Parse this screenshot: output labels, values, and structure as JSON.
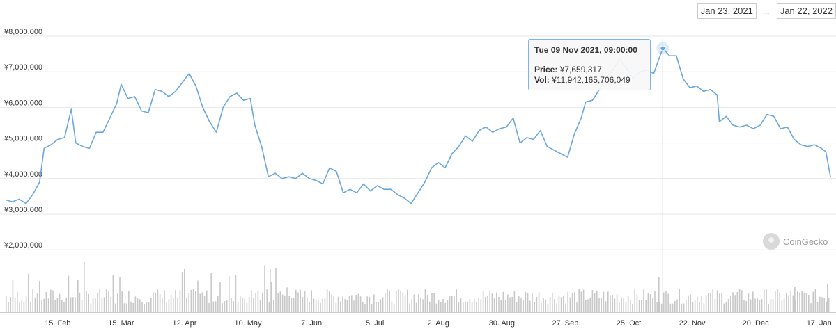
{
  "date_range": {
    "from": "Jan 23, 2021",
    "to": "Jan 22, 2022",
    "arrow": "→"
  },
  "tooltip": {
    "title": "Tue 09 Nov 2021, 09:00:00",
    "price_label": "Price:",
    "price_value": "¥7,659,317",
    "vol_label": "Vol:",
    "vol_value": "¥11,942,165,706,049"
  },
  "watermark": "CoinGecko",
  "colors": {
    "line": "#6aa7de",
    "volume": "#c8c8c8",
    "grid": "#e6e6e6",
    "tooltip_border": "#7cb5ec"
  },
  "chart_data": {
    "type": "line",
    "title": "",
    "xlabel": "",
    "ylabel": "",
    "ylim": [
      1200000,
      8700000
    ],
    "yticks": [
      2000000,
      3000000,
      4000000,
      5000000,
      6000000,
      7000000,
      8000000
    ],
    "ytick_labels": [
      "¥2,000,000",
      "¥3,000,000",
      "¥4,000,000",
      "¥5,000,000",
      "¥6,000,000",
      "¥7,000,000",
      "¥8,000,000"
    ],
    "x_start": "2021-01-23",
    "x_end": "2022-01-22",
    "xtick_labels": [
      "15. Feb",
      "15. Mar",
      "12. Apr",
      "10. May",
      "7. Jun",
      "5. Jul",
      "2. Aug",
      "30. Aug",
      "27. Sep",
      "25. Oct",
      "22. Nov",
      "20. Dec",
      "17. Jan"
    ],
    "xtick_dates": [
      "2021-02-15",
      "2021-03-15",
      "2021-04-12",
      "2021-05-10",
      "2021-06-07",
      "2021-07-05",
      "2021-08-02",
      "2021-08-30",
      "2021-09-27",
      "2021-10-25",
      "2021-11-22",
      "2021-12-20",
      "2022-01-17"
    ],
    "series": [
      {
        "type": "line",
        "points": [
          [
            "2021-01-23",
            3400000
          ],
          [
            "2021-01-26",
            3350000
          ],
          [
            "2021-01-29",
            3420000
          ],
          [
            "2021-02-01",
            3300000
          ],
          [
            "2021-02-04",
            3550000
          ],
          [
            "2021-02-07",
            3900000
          ],
          [
            "2021-02-09",
            4850000
          ],
          [
            "2021-02-12",
            4950000
          ],
          [
            "2021-02-15",
            5100000
          ],
          [
            "2021-02-18",
            5150000
          ],
          [
            "2021-02-21",
            5950000
          ],
          [
            "2021-02-23",
            5000000
          ],
          [
            "2021-02-26",
            4900000
          ],
          [
            "2021-03-01",
            4850000
          ],
          [
            "2021-03-04",
            5300000
          ],
          [
            "2021-03-07",
            5300000
          ],
          [
            "2021-03-10",
            5700000
          ],
          [
            "2021-03-13",
            6100000
          ],
          [
            "2021-03-15",
            6650000
          ],
          [
            "2021-03-18",
            6250000
          ],
          [
            "2021-03-21",
            6300000
          ],
          [
            "2021-03-24",
            5900000
          ],
          [
            "2021-03-27",
            5850000
          ],
          [
            "2021-03-30",
            6500000
          ],
          [
            "2021-04-02",
            6450000
          ],
          [
            "2021-04-05",
            6300000
          ],
          [
            "2021-04-08",
            6450000
          ],
          [
            "2021-04-11",
            6700000
          ],
          [
            "2021-04-14",
            6950000
          ],
          [
            "2021-04-17",
            6600000
          ],
          [
            "2021-04-20",
            6000000
          ],
          [
            "2021-04-23",
            5600000
          ],
          [
            "2021-04-26",
            5300000
          ],
          [
            "2021-04-29",
            6000000
          ],
          [
            "2021-05-02",
            6300000
          ],
          [
            "2021-05-05",
            6400000
          ],
          [
            "2021-05-08",
            6200000
          ],
          [
            "2021-05-11",
            6250000
          ],
          [
            "2021-05-13",
            5500000
          ],
          [
            "2021-05-16",
            4900000
          ],
          [
            "2021-05-19",
            4050000
          ],
          [
            "2021-05-22",
            4150000
          ],
          [
            "2021-05-25",
            4000000
          ],
          [
            "2021-05-28",
            4050000
          ],
          [
            "2021-05-31",
            4000000
          ],
          [
            "2021-06-03",
            4150000
          ],
          [
            "2021-06-06",
            4000000
          ],
          [
            "2021-06-09",
            3950000
          ],
          [
            "2021-06-12",
            3850000
          ],
          [
            "2021-06-15",
            4300000
          ],
          [
            "2021-06-18",
            4200000
          ],
          [
            "2021-06-21",
            3600000
          ],
          [
            "2021-06-24",
            3700000
          ],
          [
            "2021-06-27",
            3600000
          ],
          [
            "2021-06-30",
            3850000
          ],
          [
            "2021-07-03",
            3650000
          ],
          [
            "2021-07-06",
            3800000
          ],
          [
            "2021-07-09",
            3700000
          ],
          [
            "2021-07-12",
            3700000
          ],
          [
            "2021-07-15",
            3550000
          ],
          [
            "2021-07-18",
            3450000
          ],
          [
            "2021-07-21",
            3300000
          ],
          [
            "2021-07-24",
            3600000
          ],
          [
            "2021-07-27",
            3900000
          ],
          [
            "2021-07-30",
            4300000
          ],
          [
            "2021-08-02",
            4450000
          ],
          [
            "2021-08-05",
            4300000
          ],
          [
            "2021-08-08",
            4700000
          ],
          [
            "2021-08-11",
            4900000
          ],
          [
            "2021-08-14",
            5200000
          ],
          [
            "2021-08-17",
            5050000
          ],
          [
            "2021-08-20",
            5350000
          ],
          [
            "2021-08-23",
            5450000
          ],
          [
            "2021-08-26",
            5300000
          ],
          [
            "2021-08-29",
            5400000
          ],
          [
            "2021-09-01",
            5450000
          ],
          [
            "2021-09-04",
            5700000
          ],
          [
            "2021-09-07",
            5000000
          ],
          [
            "2021-09-10",
            5150000
          ],
          [
            "2021-09-13",
            5100000
          ],
          [
            "2021-09-16",
            5350000
          ],
          [
            "2021-09-19",
            4900000
          ],
          [
            "2021-09-22",
            4800000
          ],
          [
            "2021-09-25",
            4700000
          ],
          [
            "2021-09-28",
            4600000
          ],
          [
            "2021-10-01",
            5250000
          ],
          [
            "2021-10-04",
            5700000
          ],
          [
            "2021-10-06",
            6150000
          ],
          [
            "2021-10-09",
            6200000
          ],
          [
            "2021-10-12",
            6500000
          ],
          [
            "2021-10-15",
            6800000
          ],
          [
            "2021-10-18",
            7050000
          ],
          [
            "2021-10-21",
            7350000
          ],
          [
            "2021-10-24",
            7100000
          ],
          [
            "2021-10-27",
            6800000
          ],
          [
            "2021-10-30",
            7000000
          ],
          [
            "2021-11-02",
            7050000
          ],
          [
            "2021-11-05",
            6950000
          ],
          [
            "2021-11-09",
            7659317
          ],
          [
            "2021-11-12",
            7450000
          ],
          [
            "2021-11-15",
            7450000
          ],
          [
            "2021-11-18",
            6800000
          ],
          [
            "2021-11-21",
            6550000
          ],
          [
            "2021-11-24",
            6600000
          ],
          [
            "2021-11-27",
            6450000
          ],
          [
            "2021-11-30",
            6500000
          ],
          [
            "2021-12-03",
            6350000
          ],
          [
            "2021-12-04",
            5600000
          ],
          [
            "2021-12-07",
            5750000
          ],
          [
            "2021-12-10",
            5500000
          ],
          [
            "2021-12-13",
            5450000
          ],
          [
            "2021-12-16",
            5500000
          ],
          [
            "2021-12-19",
            5400000
          ],
          [
            "2021-12-22",
            5500000
          ],
          [
            "2021-12-25",
            5800000
          ],
          [
            "2021-12-28",
            5750000
          ],
          [
            "2021-12-31",
            5400000
          ],
          [
            "2022-01-03",
            5450000
          ],
          [
            "2022-01-06",
            5100000
          ],
          [
            "2022-01-09",
            4950000
          ],
          [
            "2022-01-12",
            4900000
          ],
          [
            "2022-01-15",
            4950000
          ],
          [
            "2022-01-18",
            4850000
          ],
          [
            "2022-01-20",
            4750000
          ],
          [
            "2022-01-22",
            4050000
          ]
        ]
      }
    ],
    "highlighted_point": [
      "2021-11-09",
      7659317
    ]
  }
}
